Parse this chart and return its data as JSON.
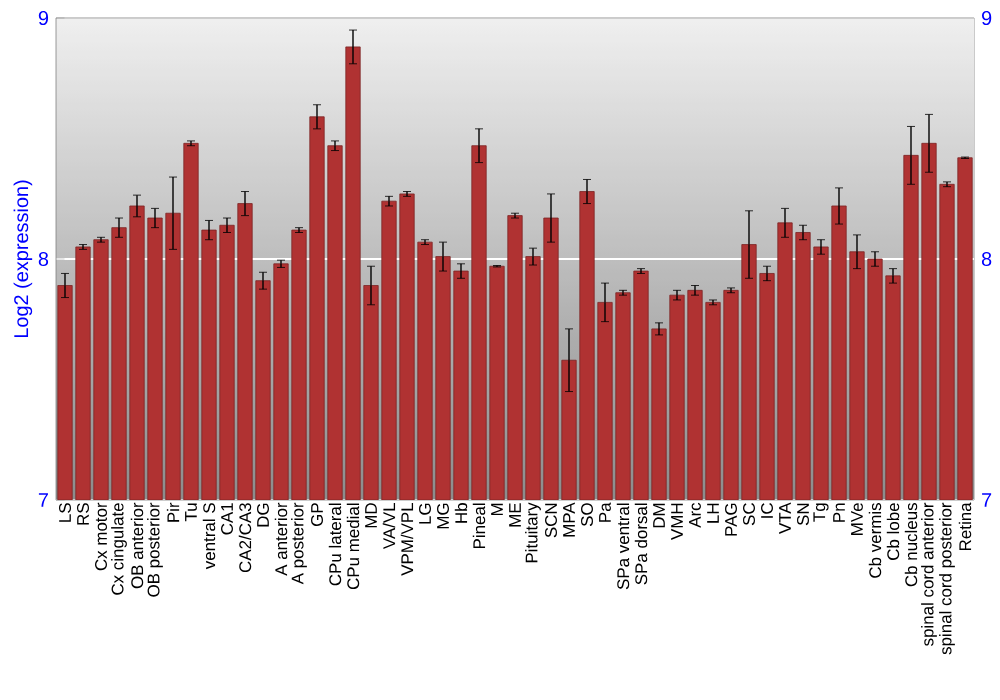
{
  "chart_data": {
    "type": "bar",
    "ylabel": "Log2 (expression)",
    "categories": [
      "LS",
      "RS",
      "Cx motor",
      "Cx cingulate",
      "OB anterior",
      "OB posterior",
      "Pir",
      "Tu",
      "ventral S",
      "CA1",
      "CA2/CA3",
      "DG",
      "A anterior",
      "A posterior",
      "GP",
      "CPu lateral",
      "CPu medial",
      "MD",
      "VA/VL",
      "VPM/VPL",
      "LG",
      "MG",
      "Hb",
      "Pineal",
      "M",
      "ME",
      "Pituitary",
      "SCN",
      "MPA",
      "SO",
      "Pa",
      "SPa ventral",
      "SPa dorsal",
      "DM",
      "VMH",
      "Arc",
      "LH",
      "PAG",
      "SC",
      "IC",
      "VTA",
      "SN",
      "Tg",
      "Pn",
      "MVe",
      "Cb vermis",
      "Cb lobe",
      "Cb nucleus",
      "spinal cord anterior",
      "spinal cord posterior",
      "Retina"
    ],
    "values": [
      7.89,
      8.05,
      8.08,
      8.13,
      8.22,
      8.17,
      8.19,
      8.48,
      8.12,
      8.14,
      8.23,
      7.91,
      7.98,
      8.12,
      8.59,
      8.47,
      8.88,
      7.89,
      8.24,
      8.27,
      8.07,
      8.01,
      7.95,
      8.47,
      7.97,
      8.18,
      8.01,
      8.17,
      7.58,
      8.28,
      7.82,
      7.86,
      7.95,
      7.71,
      7.85,
      7.87,
      7.82,
      7.87,
      8.06,
      7.94,
      8.15,
      8.11,
      8.05,
      8.22,
      8.03,
      8.0,
      7.93,
      8.43,
      8.48,
      8.31,
      8.42
    ],
    "errors": [
      0.05,
      0.01,
      0.01,
      0.04,
      0.045,
      0.04,
      0.15,
      0.01,
      0.04,
      0.03,
      0.05,
      0.035,
      0.015,
      0.01,
      0.05,
      0.02,
      0.07,
      0.08,
      0.02,
      0.01,
      0.01,
      0.06,
      0.03,
      0.07,
      0.003,
      0.01,
      0.035,
      0.1,
      0.13,
      0.05,
      0.08,
      0.01,
      0.01,
      0.025,
      0.02,
      0.02,
      0.01,
      0.01,
      0.14,
      0.03,
      0.06,
      0.03,
      0.03,
      0.075,
      0.07,
      0.03,
      0.03,
      0.12,
      0.12,
      0.01,
      0.003
    ],
    "color": "#b03232",
    "ylim": [
      7,
      9
    ],
    "yticks": [
      7,
      8,
      9
    ],
    "y2lim": [
      7,
      9
    ],
    "y2ticks": [
      7,
      8,
      9
    ],
    "grid": "y"
  }
}
